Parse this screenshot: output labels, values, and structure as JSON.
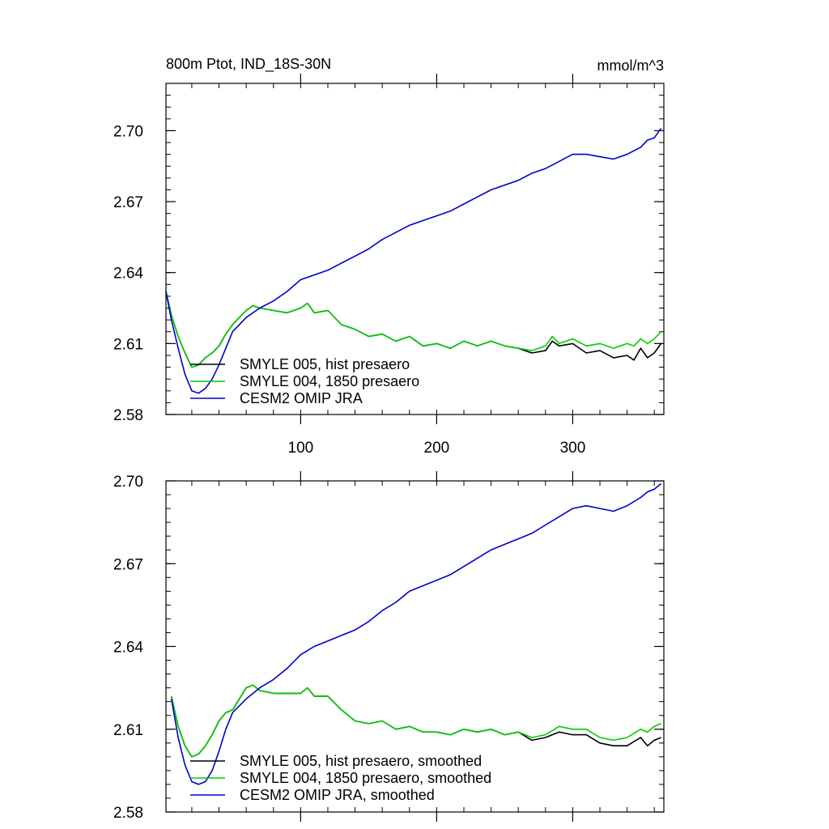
{
  "chart_data": [
    {
      "type": "line",
      "title": "800m Ptot, IND_18S-30N",
      "units": "mmol/m^3",
      "xlabel": "",
      "ylabel": "",
      "xlim": [
        1,
        367
      ],
      "ylim": [
        2.58,
        2.72
      ],
      "x_ticks": [
        100,
        200,
        300
      ],
      "x_tick_labels": [
        "100",
        "200",
        "300"
      ],
      "y_ticks": [
        2.58,
        2.61,
        2.64,
        2.67,
        2.7
      ],
      "y_tick_labels": [
        "2.58",
        "2.61",
        "2.64",
        "2.67",
        "2.70"
      ],
      "grid": false,
      "legend_position": "bottom-left",
      "series": [
        {
          "name": "SMYLE 005, hist presaero",
          "color": "#000000",
          "x": [
            1,
            5,
            10,
            15,
            20,
            25,
            30,
            35,
            40,
            45,
            50,
            55,
            60,
            65,
            70,
            80,
            90,
            100,
            105,
            110,
            120,
            130,
            140,
            150,
            160,
            170,
            180,
            190,
            200,
            210,
            220,
            230,
            240,
            250,
            260,
            270,
            280,
            285,
            290,
            300,
            310,
            320,
            330,
            340,
            345,
            350,
            355,
            360,
            365
          ],
          "values": [
            2.632,
            2.622,
            2.613,
            2.606,
            2.6,
            2.601,
            2.604,
            2.606,
            2.609,
            2.614,
            2.618,
            2.621,
            2.624,
            2.626,
            2.625,
            2.624,
            2.623,
            2.625,
            2.627,
            2.623,
            2.624,
            2.618,
            2.616,
            2.613,
            2.614,
            2.611,
            2.613,
            2.609,
            2.61,
            2.608,
            2.611,
            2.609,
            2.611,
            2.609,
            2.608,
            2.606,
            2.607,
            2.611,
            2.609,
            2.61,
            2.606,
            2.607,
            2.604,
            2.605,
            2.603,
            2.608,
            2.604,
            2.606,
            2.61
          ]
        },
        {
          "name": "SMYLE 004, 1850 presaero",
          "color": "#00cc00",
          "x": [
            1,
            5,
            10,
            15,
            20,
            25,
            30,
            35,
            40,
            45,
            50,
            55,
            60,
            65,
            70,
            80,
            90,
            100,
            105,
            110,
            120,
            130,
            140,
            150,
            160,
            170,
            180,
            190,
            200,
            210,
            220,
            230,
            240,
            250,
            260,
            270,
            280,
            285,
            290,
            300,
            310,
            320,
            330,
            340,
            345,
            350,
            355,
            360,
            365
          ],
          "values": [
            2.632,
            2.622,
            2.613,
            2.606,
            2.6,
            2.601,
            2.604,
            2.606,
            2.609,
            2.614,
            2.618,
            2.621,
            2.624,
            2.626,
            2.625,
            2.624,
            2.623,
            2.625,
            2.627,
            2.623,
            2.624,
            2.618,
            2.616,
            2.613,
            2.614,
            2.611,
            2.613,
            2.609,
            2.61,
            2.608,
            2.611,
            2.609,
            2.611,
            2.609,
            2.608,
            2.607,
            2.609,
            2.613,
            2.61,
            2.612,
            2.609,
            2.61,
            2.608,
            2.61,
            2.609,
            2.612,
            2.61,
            2.612,
            2.615
          ]
        },
        {
          "name": "CESM2 OMIP JRA",
          "color": "#0000cc",
          "x": [
            1,
            5,
            10,
            15,
            20,
            25,
            30,
            35,
            40,
            45,
            50,
            60,
            70,
            80,
            90,
            100,
            110,
            120,
            130,
            140,
            150,
            160,
            170,
            180,
            190,
            200,
            210,
            220,
            230,
            240,
            250,
            260,
            270,
            280,
            290,
            300,
            310,
            320,
            330,
            340,
            350,
            355,
            360,
            365
          ],
          "values": [
            2.632,
            2.62,
            2.608,
            2.597,
            2.59,
            2.589,
            2.591,
            2.595,
            2.601,
            2.608,
            2.615,
            2.621,
            2.625,
            2.628,
            2.632,
            2.637,
            2.639,
            2.641,
            2.644,
            2.647,
            2.65,
            2.654,
            2.657,
            2.66,
            2.662,
            2.664,
            2.666,
            2.669,
            2.672,
            2.675,
            2.677,
            2.679,
            2.682,
            2.684,
            2.687,
            2.69,
            2.69,
            2.689,
            2.688,
            2.69,
            2.693,
            2.696,
            2.697,
            2.701
          ]
        }
      ]
    },
    {
      "type": "line",
      "title": "",
      "xlabel": "",
      "ylabel": "",
      "xlim": [
        1,
        367
      ],
      "ylim": [
        2.58,
        2.7
      ],
      "x_ticks": [
        100,
        200,
        300
      ],
      "y_ticks": [
        2.58,
        2.61,
        2.64,
        2.67,
        2.7
      ],
      "y_tick_labels": [
        "2.58",
        "2.61",
        "2.64",
        "2.67",
        "2.70"
      ],
      "grid": false,
      "legend_position": "bottom-left",
      "series": [
        {
          "name": "SMYLE 005, hist presaero, smoothed",
          "color": "#000000",
          "x": [
            5,
            10,
            15,
            20,
            25,
            30,
            35,
            40,
            45,
            50,
            55,
            60,
            65,
            70,
            80,
            90,
            100,
            105,
            110,
            120,
            130,
            140,
            150,
            160,
            170,
            180,
            190,
            200,
            210,
            220,
            230,
            240,
            250,
            260,
            270,
            280,
            290,
            300,
            310,
            320,
            330,
            340,
            350,
            355,
            360,
            365
          ],
          "values": [
            2.622,
            2.611,
            2.604,
            2.6,
            2.601,
            2.604,
            2.608,
            2.613,
            2.616,
            2.617,
            2.621,
            2.625,
            2.626,
            2.624,
            2.623,
            2.623,
            2.623,
            2.625,
            2.622,
            2.622,
            2.617,
            2.613,
            2.612,
            2.613,
            2.61,
            2.611,
            2.609,
            2.609,
            2.608,
            2.61,
            2.609,
            2.61,
            2.608,
            2.609,
            2.606,
            2.607,
            2.609,
            2.608,
            2.608,
            2.605,
            2.604,
            2.604,
            2.607,
            2.604,
            2.606,
            2.607
          ]
        },
        {
          "name": "SMYLE 004, 1850 presaero, smoothed",
          "color": "#00cc00",
          "x": [
            5,
            10,
            15,
            20,
            25,
            30,
            35,
            40,
            45,
            50,
            55,
            60,
            65,
            70,
            80,
            90,
            100,
            105,
            110,
            120,
            130,
            140,
            150,
            160,
            170,
            180,
            190,
            200,
            210,
            220,
            230,
            240,
            250,
            260,
            270,
            280,
            290,
            300,
            310,
            320,
            330,
            340,
            350,
            355,
            360,
            365
          ],
          "values": [
            2.622,
            2.611,
            2.604,
            2.6,
            2.601,
            2.604,
            2.608,
            2.613,
            2.616,
            2.617,
            2.621,
            2.625,
            2.626,
            2.624,
            2.623,
            2.623,
            2.623,
            2.625,
            2.622,
            2.622,
            2.617,
            2.613,
            2.612,
            2.613,
            2.61,
            2.611,
            2.609,
            2.609,
            2.608,
            2.61,
            2.609,
            2.61,
            2.608,
            2.609,
            2.607,
            2.608,
            2.611,
            2.61,
            2.61,
            2.607,
            2.606,
            2.607,
            2.61,
            2.609,
            2.611,
            2.612
          ]
        },
        {
          "name": "CESM2 OMIP JRA, smoothed",
          "color": "#0000cc",
          "x": [
            5,
            10,
            15,
            20,
            25,
            30,
            35,
            40,
            45,
            50,
            60,
            70,
            80,
            90,
            100,
            110,
            120,
            130,
            140,
            150,
            160,
            170,
            180,
            190,
            200,
            210,
            220,
            230,
            240,
            250,
            260,
            270,
            280,
            290,
            300,
            310,
            320,
            330,
            340,
            350,
            355,
            360,
            365
          ],
          "values": [
            2.621,
            2.607,
            2.597,
            2.591,
            2.59,
            2.591,
            2.595,
            2.602,
            2.61,
            2.616,
            2.621,
            2.625,
            2.628,
            2.632,
            2.637,
            2.64,
            2.642,
            2.644,
            2.646,
            2.649,
            2.653,
            2.656,
            2.66,
            2.662,
            2.664,
            2.666,
            2.669,
            2.672,
            2.675,
            2.677,
            2.679,
            2.681,
            2.684,
            2.687,
            2.69,
            2.691,
            2.69,
            2.689,
            2.691,
            2.694,
            2.696,
            2.697,
            2.699
          ]
        }
      ]
    }
  ]
}
